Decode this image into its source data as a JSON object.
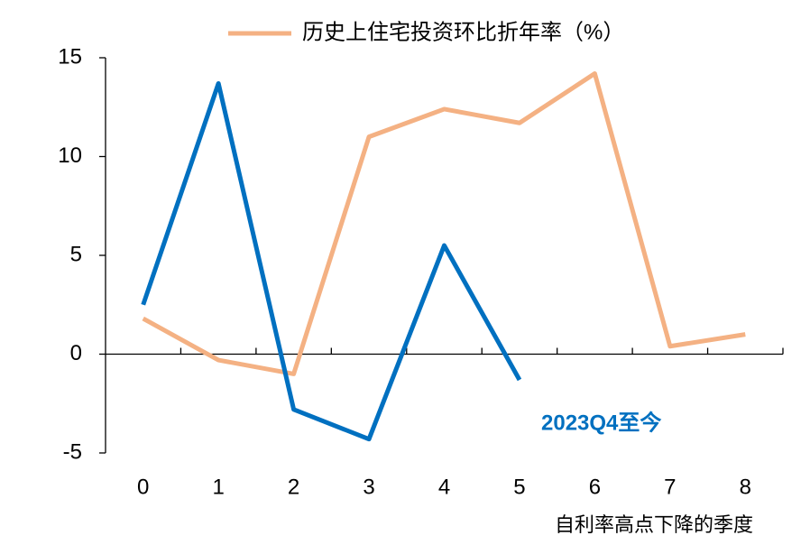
{
  "chart_data": {
    "type": "line",
    "x_label": "自利率高点下降的季度",
    "categories": [
      "0",
      "1",
      "2",
      "3",
      "4",
      "5",
      "6",
      "7",
      "8"
    ],
    "series": [
      {
        "name": "历史上住宅投资环比折年率（%）",
        "color": "#f4b183",
        "values": [
          1.8,
          -0.3,
          -1.0,
          11.0,
          12.4,
          11.7,
          14.2,
          0.4,
          1.0
        ]
      },
      {
        "name": "2023Q4至今",
        "color": "#0070c0",
        "values": [
          2.5,
          13.7,
          -2.8,
          -4.3,
          5.5,
          -1.3,
          null,
          null,
          null
        ]
      }
    ],
    "ylim": [
      -5,
      15
    ],
    "yticks": [
      -5,
      0,
      5,
      10,
      15
    ],
    "legend": "top"
  }
}
